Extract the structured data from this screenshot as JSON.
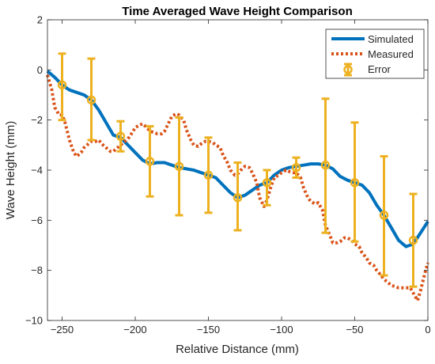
{
  "chart_data": {
    "type": "line",
    "title": "Time Averaged Wave Height Comparison",
    "xlabel": "Relative Distance (mm)",
    "ylabel": "Wave Height (mm)",
    "xlim": [
      -260,
      0
    ],
    "ylim": [
      -10,
      2
    ],
    "xticks": [
      -250,
      -200,
      -150,
      -100,
      -50,
      0
    ],
    "yticks": [
      -10,
      -8,
      -6,
      -4,
      -2,
      0,
      2
    ],
    "legend_position": "top-right",
    "grid": false,
    "series": [
      {
        "name": "Simulated",
        "style": "solid",
        "color": "#0072BD",
        "x": [
          -260,
          -255,
          -250,
          -245,
          -240,
          -235,
          -230,
          -225,
          -220,
          -215,
          -210,
          -205,
          -200,
          -195,
          -190,
          -185,
          -180,
          -175,
          -170,
          -165,
          -160,
          -155,
          -150,
          -145,
          -140,
          -135,
          -130,
          -125,
          -120,
          -115,
          -110,
          -105,
          -100,
          -95,
          -90,
          -85,
          -80,
          -75,
          -70,
          -65,
          -60,
          -55,
          -50,
          -45,
          -40,
          -35,
          -30,
          -25,
          -20,
          -15,
          -10,
          -5,
          0
        ],
        "y": [
          -0.05,
          -0.3,
          -0.6,
          -0.8,
          -0.9,
          -1.0,
          -1.2,
          -1.6,
          -2.1,
          -2.6,
          -2.7,
          -3.0,
          -3.3,
          -3.6,
          -3.75,
          -3.7,
          -3.7,
          -3.8,
          -3.9,
          -3.95,
          -4.0,
          -4.1,
          -4.2,
          -4.3,
          -4.6,
          -4.9,
          -5.1,
          -5.0,
          -4.8,
          -4.6,
          -4.5,
          -4.2,
          -4.0,
          -3.9,
          -3.85,
          -3.8,
          -3.75,
          -3.75,
          -3.8,
          -3.95,
          -4.25,
          -4.4,
          -4.5,
          -4.6,
          -4.9,
          -5.4,
          -5.8,
          -6.3,
          -6.8,
          -7.05,
          -6.95,
          -6.5,
          -6.05
        ]
      },
      {
        "name": "Measured",
        "style": "dotted",
        "color": "#D95319",
        "x": [
          -260,
          -257,
          -255,
          -252,
          -250,
          -248,
          -245,
          -242,
          -240,
          -237,
          -235,
          -232,
          -230,
          -227,
          -225,
          -222,
          -220,
          -217,
          -215,
          -212,
          -210,
          -207,
          -205,
          -202,
          -200,
          -197,
          -195,
          -192,
          -190,
          -187,
          -185,
          -182,
          -180,
          -177,
          -175,
          -172,
          -170,
          -167,
          -165,
          -162,
          -160,
          -157,
          -155,
          -152,
          -150,
          -147,
          -145,
          -142,
          -140,
          -137,
          -135,
          -132,
          -130,
          -127,
          -125,
          -122,
          -120,
          -117,
          -115,
          -112,
          -110,
          -107,
          -105,
          -102,
          -100,
          -97,
          -95,
          -92,
          -90,
          -87,
          -85,
          -82,
          -80,
          -77,
          -75,
          -72,
          -70,
          -67,
          -65,
          -62,
          -60,
          -57,
          -55,
          -52,
          -50,
          -47,
          -45,
          -42,
          -40,
          -37,
          -35,
          -32,
          -30,
          -27,
          -25,
          -22,
          -20,
          -17,
          -15,
          -12,
          -10,
          -7,
          -5,
          -2,
          0
        ],
        "y": [
          -0.2,
          -0.8,
          -1.5,
          -1.8,
          -1.8,
          -2.1,
          -2.8,
          -3.3,
          -3.45,
          -3.3,
          -3.1,
          -2.95,
          -2.85,
          -2.85,
          -2.8,
          -3.0,
          -3.1,
          -3.25,
          -3.25,
          -3.1,
          -3.0,
          -2.85,
          -2.75,
          -2.5,
          -2.3,
          -2.2,
          -2.15,
          -2.3,
          -2.45,
          -2.5,
          -2.55,
          -2.55,
          -2.45,
          -2.1,
          -1.85,
          -1.75,
          -1.8,
          -2.0,
          -2.4,
          -2.8,
          -3.0,
          -3.05,
          -2.95,
          -2.85,
          -2.85,
          -2.9,
          -3.0,
          -3.1,
          -3.4,
          -3.7,
          -4.0,
          -4.2,
          -4.15,
          -3.95,
          -3.85,
          -3.9,
          -4.1,
          -4.5,
          -5.1,
          -5.45,
          -5.2,
          -4.6,
          -4.3,
          -4.2,
          -4.1,
          -4.0,
          -4.05,
          -4.1,
          -4.1,
          -4.3,
          -4.7,
          -5.1,
          -5.25,
          -5.35,
          -5.3,
          -5.6,
          -6.2,
          -6.6,
          -6.9,
          -6.9,
          -6.85,
          -6.7,
          -6.7,
          -6.8,
          -6.95,
          -7.05,
          -7.3,
          -7.5,
          -7.7,
          -7.8,
          -8.0,
          -8.2,
          -8.35,
          -8.5,
          -8.6,
          -8.65,
          -8.7,
          -8.7,
          -8.7,
          -8.7,
          -8.9,
          -9.2,
          -8.8,
          -8.1,
          -7.7
        ]
      }
    ],
    "error_bars": {
      "name": "Error",
      "color": "#EDB120",
      "x": [
        -250,
        -230,
        -210,
        -190,
        -170,
        -150,
        -130,
        -110,
        -90,
        -70,
        -50,
        -30,
        -10
      ],
      "y": [
        -0.6,
        -1.2,
        -2.65,
        -3.65,
        -3.85,
        -4.2,
        -5.1,
        -4.5,
        -3.9,
        -3.8,
        -4.5,
        -5.8,
        -6.8
      ],
      "upper": [
        0.65,
        0.45,
        -2.05,
        -2.25,
        -1.9,
        -2.7,
        -3.7,
        -4.0,
        -3.5,
        -1.15,
        -2.1,
        -3.45,
        -4.95
      ],
      "lower": [
        -2.0,
        -2.8,
        -3.25,
        -5.05,
        -5.8,
        -5.7,
        -6.4,
        -5.4,
        -4.3,
        -6.5,
        -6.85,
        -8.2,
        -8.65
      ]
    }
  }
}
